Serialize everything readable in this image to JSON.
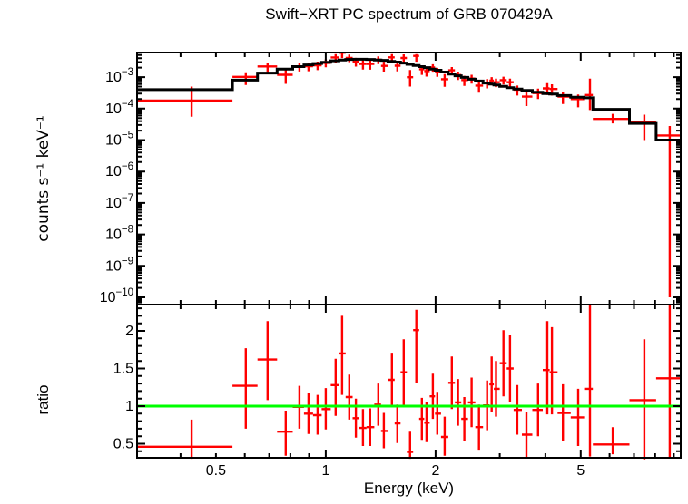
{
  "chart_data": {
    "type": "scatter",
    "subtype": "x-ray spectrum with errorbars, stepped folded model and data/model ratio panel",
    "title": "Swift−XRT PC spectrum of GRB 070429A",
    "colors": {
      "data": "#ff0000",
      "model": "#000000",
      "unity_line": "#00ff00",
      "frame": "#000000",
      "background": "#ffffff"
    },
    "x_axis": {
      "label": "Energy (keV)",
      "scale": "log",
      "min": 0.304,
      "max": 9.4,
      "labeled_ticks": [
        0.5,
        1,
        2,
        5
      ],
      "major_ticks": [
        1,
        2,
        5
      ],
      "minor_ticks": [
        0.4,
        0.5,
        0.6,
        0.7,
        0.8,
        0.9,
        3,
        4,
        6,
        7,
        8,
        9
      ]
    },
    "panels": [
      {
        "name": "spectrum",
        "ylabel": "counts s⁻¹ keV⁻¹",
        "yscale": "log",
        "ylim": [
          5.9e-11,
          0.00603
        ],
        "decade_labels": [
          -3,
          -4,
          -5,
          -6,
          -7,
          -8,
          -9,
          -10
        ],
        "grid": false
      },
      {
        "name": "ratio",
        "ylabel": "ratio",
        "yscale": "linear",
        "ylim": [
          0.313,
          2.35
        ],
        "major_ticks": [
          0.5,
          1,
          1.5,
          2
        ],
        "minor_tick_step": 0.1,
        "unity_line": 1,
        "grid": false
      }
    ],
    "columns": [
      "energy_keV",
      "energy_lo",
      "energy_hi",
      "counts",
      "counts_lo",
      "counts_hi",
      "model_counts",
      "ratio",
      "ratio_lo",
      "ratio_hi"
    ],
    "points": [
      [
        0.429,
        0.304,
        0.555,
        0.00018,
        5.5e-05,
        0.0005,
        0.0004,
        0.46,
        0.3,
        0.82
      ],
      [
        0.604,
        0.555,
        0.65,
        0.00102,
        0.00056,
        0.00142,
        0.0008,
        1.27,
        0.7,
        1.77
      ],
      [
        0.693,
        0.65,
        0.736,
        0.00219,
        0.00146,
        0.00288,
        0.00135,
        1.62,
        1.08,
        2.13
      ],
      [
        0.777,
        0.736,
        0.812,
        0.00119,
        0.00061,
        0.00169,
        0.0018,
        0.66,
        0.34,
        0.94
      ],
      [
        0.847,
        0.812,
        0.872,
        0.00213,
        0.00151,
        0.00273,
        0.00215,
        0.99,
        0.7,
        1.27
      ],
      [
        0.897,
        0.872,
        0.923,
        0.00221,
        0.00154,
        0.00287,
        0.00245,
        0.9,
        0.63,
        1.17
      ],
      [
        0.95,
        0.923,
        0.975,
        0.00238,
        0.00167,
        0.00311,
        0.0027,
        0.88,
        0.62,
        1.15
      ],
      [
        1.0,
        0.975,
        1.032,
        0.00283,
        0.00204,
        0.00366,
        0.00295,
        0.96,
        0.69,
        1.24
      ],
      [
        1.065,
        1.032,
        1.087,
        0.00422,
        0.00287,
        0.00538,
        0.0033,
        1.28,
        0.87,
        1.63
      ],
      [
        1.109,
        1.087,
        1.134,
        0.00595,
        0.00403,
        0.0077,
        0.0035,
        1.7,
        1.15,
        2.2
      ],
      [
        1.16,
        1.134,
        1.185,
        0.00409,
        0.00299,
        0.00518,
        0.00365,
        1.12,
        0.82,
        1.42
      ],
      [
        1.21,
        1.185,
        1.237,
        0.00311,
        0.00215,
        0.00407,
        0.0037,
        0.84,
        0.58,
        1.1
      ],
      [
        1.265,
        1.237,
        1.294,
        0.00263,
        0.00174,
        0.00355,
        0.0037,
        0.71,
        0.47,
        0.96
      ],
      [
        1.324,
        1.294,
        1.359,
        0.00263,
        0.00172,
        0.00354,
        0.00365,
        0.72,
        0.47,
        0.97
      ],
      [
        1.394,
        1.359,
        1.418,
        0.00357,
        0.00259,
        0.00455,
        0.0035,
        1.02,
        0.74,
        1.3
      ],
      [
        1.443,
        1.418,
        1.481,
        0.00228,
        0.0015,
        0.00309,
        0.0034,
        0.67,
        0.44,
        0.91
      ],
      [
        1.519,
        1.481,
        1.545,
        0.00425,
        0.00312,
        0.00539,
        0.00315,
        1.35,
        0.99,
        1.71
      ],
      [
        1.572,
        1.545,
        1.604,
        0.00231,
        0.00153,
        0.00306,
        0.003,
        0.77,
        0.51,
        1.02
      ],
      [
        1.636,
        1.604,
        1.669,
        0.00406,
        0.00283,
        0.00529,
        0.0028,
        1.45,
        1.01,
        1.89
      ],
      [
        1.703,
        1.669,
        1.737,
        0.00099,
        0.0005,
        0.00168,
        0.00255,
        0.39,
        0.3,
        0.66
      ],
      [
        1.772,
        1.737,
        1.803,
        0.00472,
        0.00308,
        0.00536,
        0.00235,
        2.01,
        1.31,
        2.28
      ],
      [
        1.835,
        1.803,
        1.862,
        0.00178,
        0.00118,
        0.00239,
        0.00215,
        0.83,
        0.55,
        1.11
      ],
      [
        1.889,
        1.862,
        1.927,
        0.00156,
        0.00104,
        0.0021,
        0.002,
        0.78,
        0.52,
        1.05
      ],
      [
        1.966,
        1.927,
        1.994,
        0.00203,
        0.00149,
        0.00257,
        0.0018,
        1.13,
        0.83,
        1.43
      ],
      [
        2.023,
        1.994,
        2.07,
        0.00149,
        0.00102,
        0.00196,
        0.00165,
        0.9,
        0.62,
        1.19
      ],
      [
        2.118,
        2.07,
        2.167,
        0.00086,
        0.00049,
        0.00125,
        0.00145,
        0.59,
        0.34,
        0.86
      ],
      [
        2.216,
        2.167,
        2.26,
        0.00164,
        0.0012,
        0.00208,
        0.00125,
        1.31,
        0.96,
        1.66
      ],
      [
        2.305,
        2.26,
        2.352,
        0.00116,
        0.00081,
        0.0015,
        0.0011,
        1.05,
        0.74,
        1.36
      ],
      [
        2.399,
        2.352,
        2.455,
        0.00081,
        0.00053,
        0.0011,
        0.00098,
        0.83,
        0.54,
        1.12
      ],
      [
        2.512,
        2.455,
        2.571,
        0.0009,
        0.00062,
        0.00119,
        0.00086,
        1.05,
        0.72,
        1.38
      ],
      [
        2.631,
        2.571,
        2.7,
        0.00054,
        0.00032,
        0.00077,
        0.00075,
        0.72,
        0.42,
        1.02
      ],
      [
        2.77,
        2.7,
        2.81,
        0.00066,
        0.00044,
        0.00087,
        0.00065,
        1.01,
        0.68,
        1.34
      ],
      [
        2.85,
        2.81,
        2.89,
        0.00077,
        0.00055,
        0.001,
        0.0006,
        1.29,
        0.92,
        1.66
      ],
      [
        2.93,
        2.89,
        3.0,
        0.00069,
        0.00048,
        0.0009,
        0.00056,
        1.23,
        0.86,
        1.6
      ],
      [
        3.07,
        3.0,
        3.135,
        0.0008,
        0.00058,
        0.00103,
        0.00051,
        1.57,
        1.13,
        2.01
      ],
      [
        3.2,
        3.135,
        3.275,
        0.00069,
        0.00049,
        0.00089,
        0.00046,
        1.5,
        1.06,
        1.94
      ],
      [
        3.35,
        3.275,
        3.45,
        0.0004,
        0.00026,
        0.00054,
        0.00042,
        0.95,
        0.62,
        1.28
      ],
      [
        3.55,
        3.45,
        3.685,
        0.00024,
        0.00012,
        0.00035,
        0.00038,
        0.62,
        0.32,
        0.92
      ],
      [
        3.82,
        3.685,
        3.935,
        0.00031,
        0.0002,
        0.00043,
        0.00033,
        0.95,
        0.6,
        1.3
      ],
      [
        4.05,
        3.935,
        4.11,
        0.00044,
        0.00027,
        0.00064,
        0.0003,
        1.48,
        0.89,
        2.13
      ],
      [
        4.17,
        4.11,
        4.32,
        0.00042,
        0.00026,
        0.00059,
        0.00029,
        1.45,
        0.89,
        2.05
      ],
      [
        4.47,
        4.32,
        4.695,
        0.00024,
        0.00014,
        0.00034,
        0.00026,
        0.91,
        0.53,
        1.29
      ],
      [
        4.92,
        4.695,
        5.11,
        0.0002,
        0.00011,
        0.00028,
        0.00023,
        0.85,
        0.47,
        1.23
      ],
      [
        5.3,
        5.11,
        5.4,
        0.00027,
        9e-05,
        0.0009,
        0.00022,
        1.23,
        0.33,
        2.35
      ],
      [
        6.12,
        5.4,
        6.8,
        4.7e-05,
        3.4e-05,
        6.8e-05,
        9.5e-05,
        0.49,
        0.36,
        0.72
      ],
      [
        7.47,
        6.8,
        8.05,
        3.7e-05,
        1e-05,
        6.4e-05,
        3.4e-05,
        1.08,
        0.29,
        1.89
      ],
      [
        8.77,
        8.05,
        9.4,
        1.4e-05,
        1e-10,
        2.8e-05,
        1e-05,
        1.37,
        0.31,
        2.34
      ]
    ]
  }
}
